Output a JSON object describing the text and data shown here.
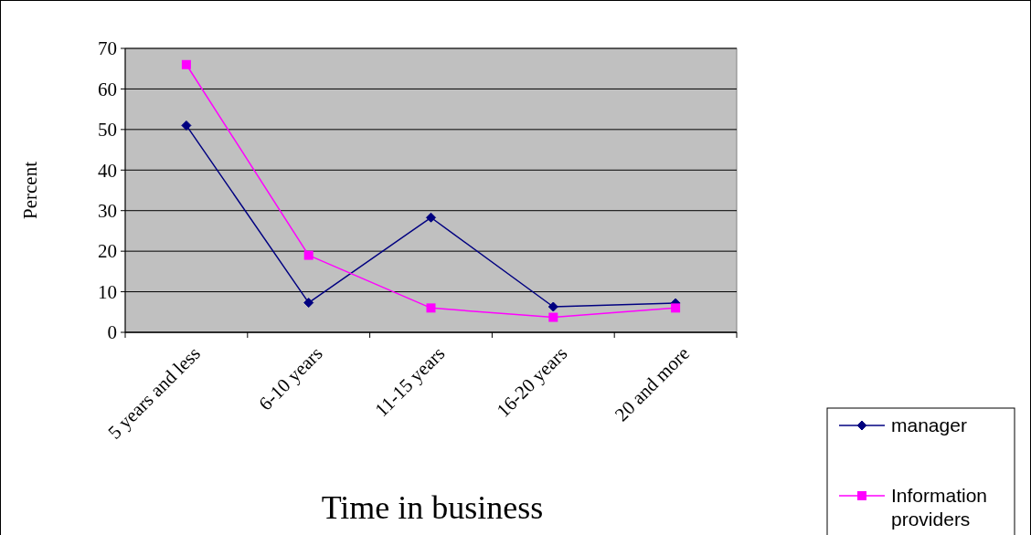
{
  "chart_data": {
    "type": "line",
    "xlabel": "Time in business",
    "ylabel": "Percent",
    "categories": [
      "5 years and less",
      "6-10 years",
      "11-15 years",
      "16-20 years",
      "20 and more"
    ],
    "series": [
      {
        "name": "manager",
        "color": "#000080",
        "marker": "diamond",
        "values": [
          51,
          7.3,
          28.3,
          6.3,
          7.2
        ]
      },
      {
        "name": "Information providers",
        "color": "#ff00ff",
        "marker": "square",
        "values": [
          66,
          19,
          6,
          3.7,
          6
        ]
      }
    ],
    "ylim": [
      0,
      70
    ],
    "yticks": [
      0,
      10,
      20,
      30,
      40,
      50,
      60,
      70
    ],
    "grid": "y",
    "legend": "bottom right",
    "line_style": "solid"
  }
}
